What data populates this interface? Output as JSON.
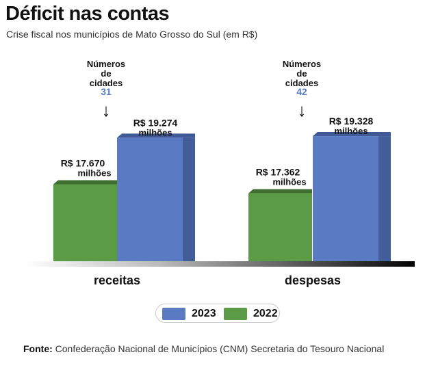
{
  "header": {
    "title": "Déficit nas contas",
    "subtitle": "Crise fiscal nos municípios de Mato Grosso do Sul (em R$)"
  },
  "colors": {
    "series_2023": "#5a7bc4",
    "series_2023_side": "#435d9a",
    "series_2023_top": "#3f5a96",
    "series_2022": "#5b9a46",
    "series_2022_top": "#3f6f30",
    "city_count": "#5a7bc4"
  },
  "chart_data": {
    "type": "bar",
    "title": "Déficit nas contas",
    "subtitle": "Crise fiscal nos municípios de Mato Grosso do Sul (em R$)",
    "unit": "R$ milhões",
    "categories": [
      "receitas",
      "despesas"
    ],
    "series": [
      {
        "name": "2022",
        "values": [
          17670,
          17362
        ],
        "labels": [
          {
            "value": "R$ 17.670",
            "unit": "milhões"
          },
          {
            "value": "R$ 17.362",
            "unit": "milhões"
          }
        ]
      },
      {
        "name": "2023",
        "values": [
          19274,
          19328
        ],
        "labels": [
          {
            "value": "R$ 19.274",
            "unit": "milhões"
          },
          {
            "value": "R$ 19.328",
            "unit": "milhões"
          }
        ]
      }
    ],
    "ylim": [
      15000,
      20000
    ],
    "annotations": [
      {
        "category": "receitas",
        "lines": [
          "Números",
          "de",
          "cidades"
        ],
        "count": "31",
        "arrow": "↓"
      },
      {
        "category": "despesas",
        "lines": [
          "Números",
          "de",
          "cidades"
        ],
        "count": "42",
        "arrow": "↓"
      }
    ],
    "legend": {
      "position": "bottom-center",
      "items": [
        "2023",
        "2022"
      ]
    }
  },
  "source": {
    "label": "Fonte:",
    "text": "Confederação Nacional de Municípios (CNM) Secretaria do Tesouro Nacional"
  }
}
